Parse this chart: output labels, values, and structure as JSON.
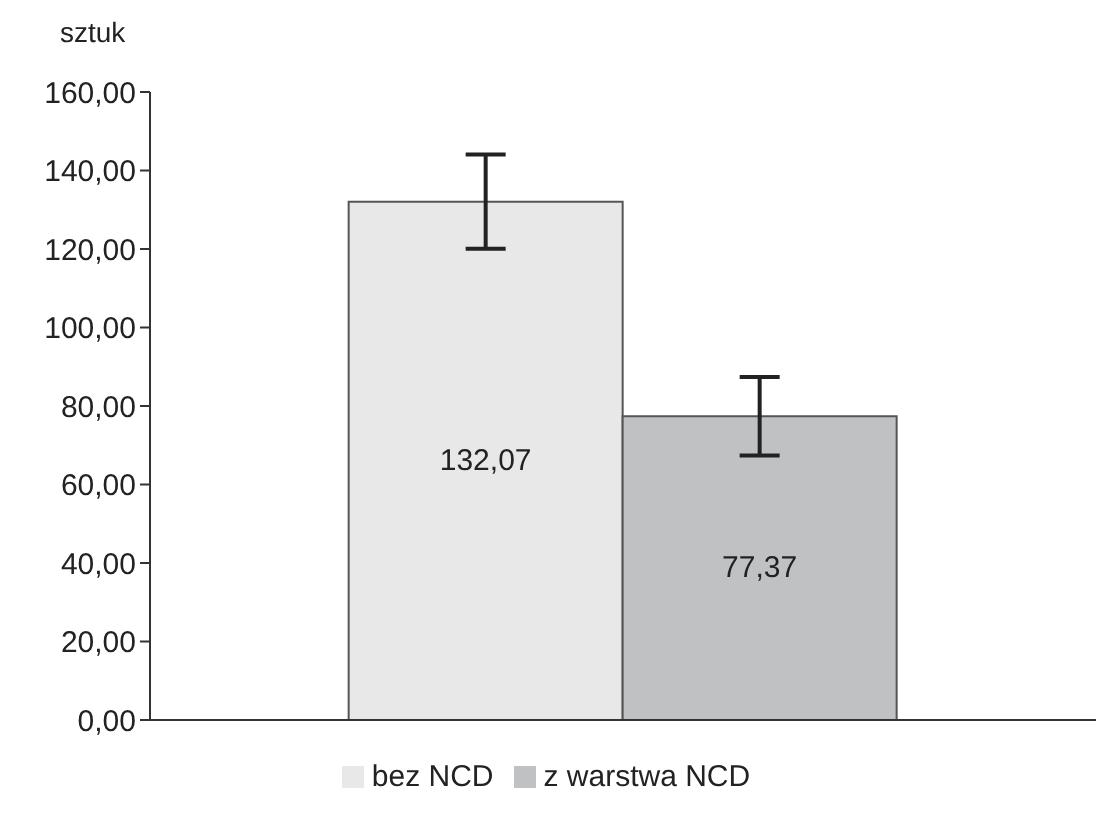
{
  "chart_data": {
    "type": "bar",
    "ylabel": "sztuk",
    "categories": [
      null
    ],
    "series": [
      {
        "name": "bez NCD",
        "color": "#e8e8e8",
        "values": [
          132.07
        ],
        "errors": [
          12
        ],
        "value_labels": [
          "132,07"
        ]
      },
      {
        "name": "z warstwa NCD",
        "color": "#bfc1c3",
        "values": [
          77.37
        ],
        "errors": [
          10
        ],
        "value_labels": [
          "77,37"
        ]
      }
    ],
    "ylim": [
      0,
      160
    ],
    "yticks": [
      {
        "value": 0,
        "label": "0,00"
      },
      {
        "value": 20,
        "label": "20,00"
      },
      {
        "value": 40,
        "label": "40,00"
      },
      {
        "value": 60,
        "label": "60,00"
      },
      {
        "value": 80,
        "label": "80,00"
      },
      {
        "value": 100,
        "label": "100,00"
      },
      {
        "value": 120,
        "label": "120,00"
      },
      {
        "value": 140,
        "label": "140,00"
      },
      {
        "value": 160,
        "label": "160,00"
      }
    ],
    "grid": false,
    "legend": "bottom"
  }
}
